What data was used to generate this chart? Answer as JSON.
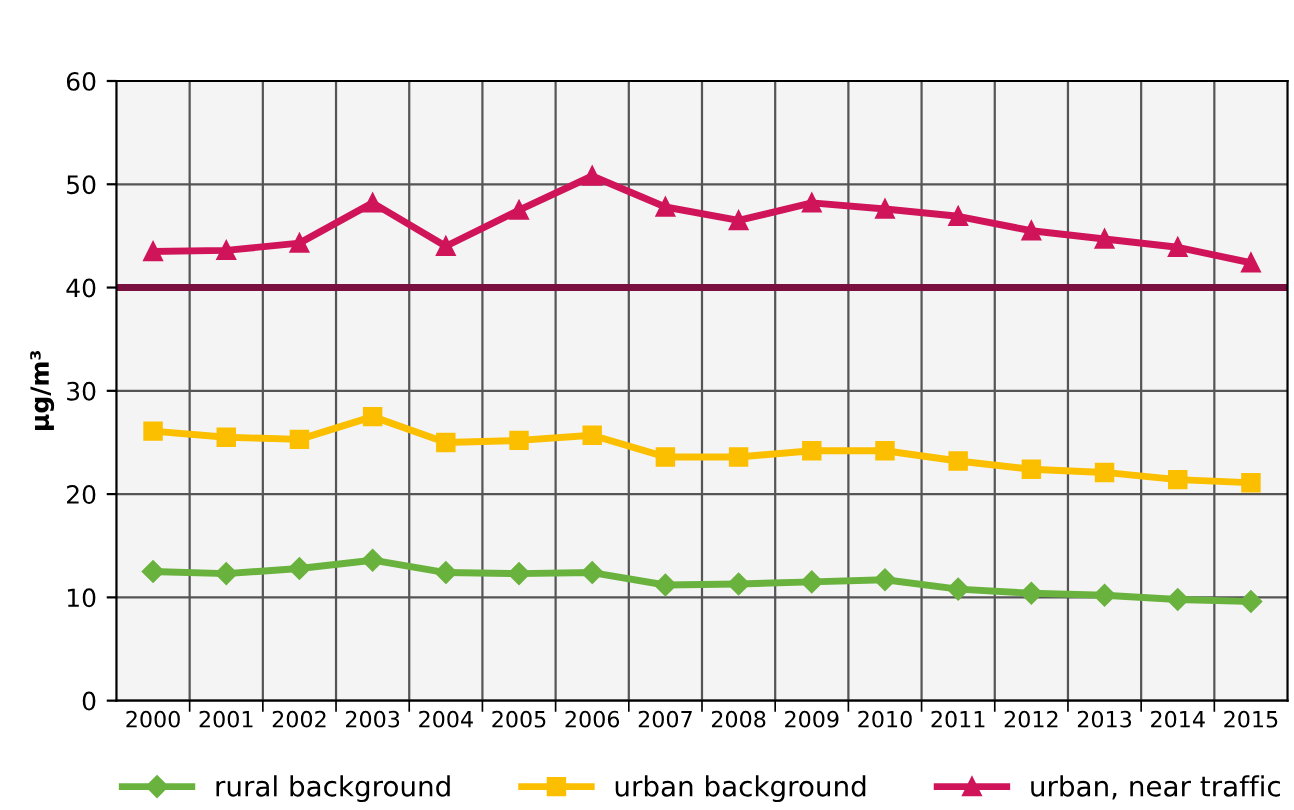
{
  "chart_data": {
    "type": "line",
    "ylabel": "µg/m³",
    "categories": [
      "2000",
      "2001",
      "2002",
      "2003",
      "2004",
      "2005",
      "2006",
      "2007",
      "2008",
      "2009",
      "2010",
      "2011",
      "2012",
      "2013",
      "2014",
      "2015"
    ],
    "series": [
      {
        "name": "rural background",
        "color": "#6ab23e",
        "marker": "diamond",
        "values": [
          12.5,
          12.3,
          12.8,
          13.6,
          12.4,
          12.3,
          12.4,
          11.2,
          11.3,
          11.5,
          11.7,
          10.8,
          10.4,
          10.2,
          9.8,
          9.6
        ]
      },
      {
        "name": "urban background",
        "color": "#fbbf00",
        "marker": "square",
        "values": [
          26.1,
          25.5,
          25.3,
          27.5,
          25.0,
          25.2,
          25.7,
          23.6,
          23.6,
          24.2,
          24.2,
          23.2,
          22.4,
          22.1,
          21.4,
          21.1
        ]
      },
      {
        "name": "urban, near traffic",
        "color": "#d0145a",
        "marker": "triangle",
        "values": [
          43.5,
          43.6,
          44.3,
          48.2,
          44.0,
          47.5,
          50.8,
          47.8,
          46.5,
          48.2,
          47.6,
          46.9,
          45.5,
          44.7,
          43.9,
          42.4
        ]
      }
    ],
    "ref_lines": [
      {
        "axis": "y",
        "value": 40,
        "color": "#7a1040",
        "line_style": "solid"
      }
    ],
    "ylim": [
      0,
      60
    ],
    "yticks": [
      0,
      10,
      20,
      30,
      40,
      50,
      60
    ],
    "grid": true,
    "legend": "bottom",
    "line_style": "solid"
  }
}
